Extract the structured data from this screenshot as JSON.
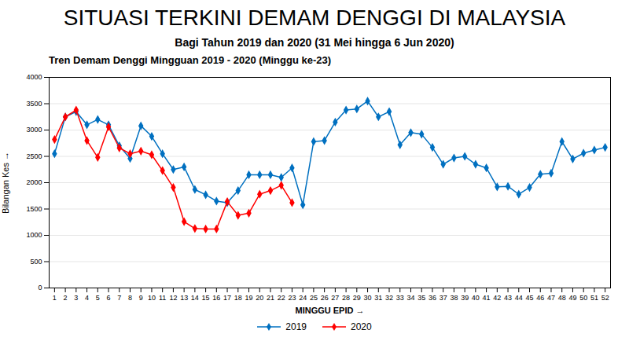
{
  "chart_data": {
    "type": "line",
    "title": "SITUASI TERKINI DEMAM DENGGI DI MALAYSIA",
    "subtitle": "Bagi Tahun 2019 dan 2020 (31 Mei hingga 6 Jun 2020)",
    "chart_title": "Tren Demam Denggi Mingguan 2019 - 2020 (Minggu ke-23)",
    "x_label": "MINGGU EPID",
    "y_label": "Bilangan Kes",
    "x": [
      1,
      2,
      3,
      4,
      5,
      6,
      7,
      8,
      9,
      10,
      11,
      12,
      13,
      14,
      15,
      16,
      17,
      18,
      19,
      20,
      21,
      22,
      23,
      24,
      25,
      26,
      27,
      28,
      29,
      30,
      31,
      32,
      33,
      34,
      35,
      36,
      37,
      38,
      39,
      40,
      41,
      42,
      43,
      44,
      45,
      46,
      47,
      48,
      49,
      50,
      51,
      52
    ],
    "xlim": [
      0.5,
      52.5
    ],
    "xticks": [
      1,
      2,
      3,
      4,
      5,
      6,
      7,
      8,
      9,
      10,
      11,
      12,
      13,
      14,
      15,
      16,
      17,
      18,
      19,
      20,
      21,
      22,
      23,
      24,
      25,
      26,
      27,
      28,
      29,
      30,
      31,
      32,
      33,
      34,
      35,
      36,
      37,
      38,
      39,
      40,
      41,
      42,
      43,
      44,
      45,
      46,
      47,
      48,
      49,
      50,
      51,
      52
    ],
    "ylim": [
      0,
      4000
    ],
    "yticks": [
      0,
      500,
      1000,
      1500,
      2000,
      2500,
      3000,
      3500,
      4000
    ],
    "grid": true,
    "legend": "bottom",
    "series": [
      {
        "name": "2019",
        "color": "#0070C0",
        "marker": "diamond",
        "values": [
          2550,
          3250,
          3350,
          3100,
          3200,
          3100,
          2700,
          2460,
          3080,
          2880,
          2550,
          2250,
          2300,
          1870,
          1770,
          1650,
          1620,
          1850,
          2150,
          2150,
          2150,
          2100,
          2280,
          1580,
          2780,
          2800,
          3150,
          3380,
          3400,
          3550,
          3250,
          3350,
          2720,
          2950,
          2920,
          2670,
          2350,
          2470,
          2500,
          2350,
          2280,
          1920,
          1930,
          1780,
          1910,
          2160,
          2180,
          2780,
          2450,
          2560,
          2620,
          2670
        ]
      },
      {
        "name": "2020",
        "color": "#FF0000",
        "marker": "diamond",
        "values": [
          2820,
          3250,
          3380,
          2800,
          2480,
          3060,
          2660,
          2550,
          2600,
          2530,
          2230,
          1910,
          1260,
          1130,
          1120,
          1120,
          1640,
          1380,
          1420,
          1780,
          1850,
          1950,
          1620,
          null,
          null,
          null,
          null,
          null,
          null,
          null,
          null,
          null,
          null,
          null,
          null,
          null,
          null,
          null,
          null,
          null,
          null,
          null,
          null,
          null,
          null,
          null,
          null,
          null,
          null,
          null,
          null,
          null
        ]
      }
    ]
  }
}
